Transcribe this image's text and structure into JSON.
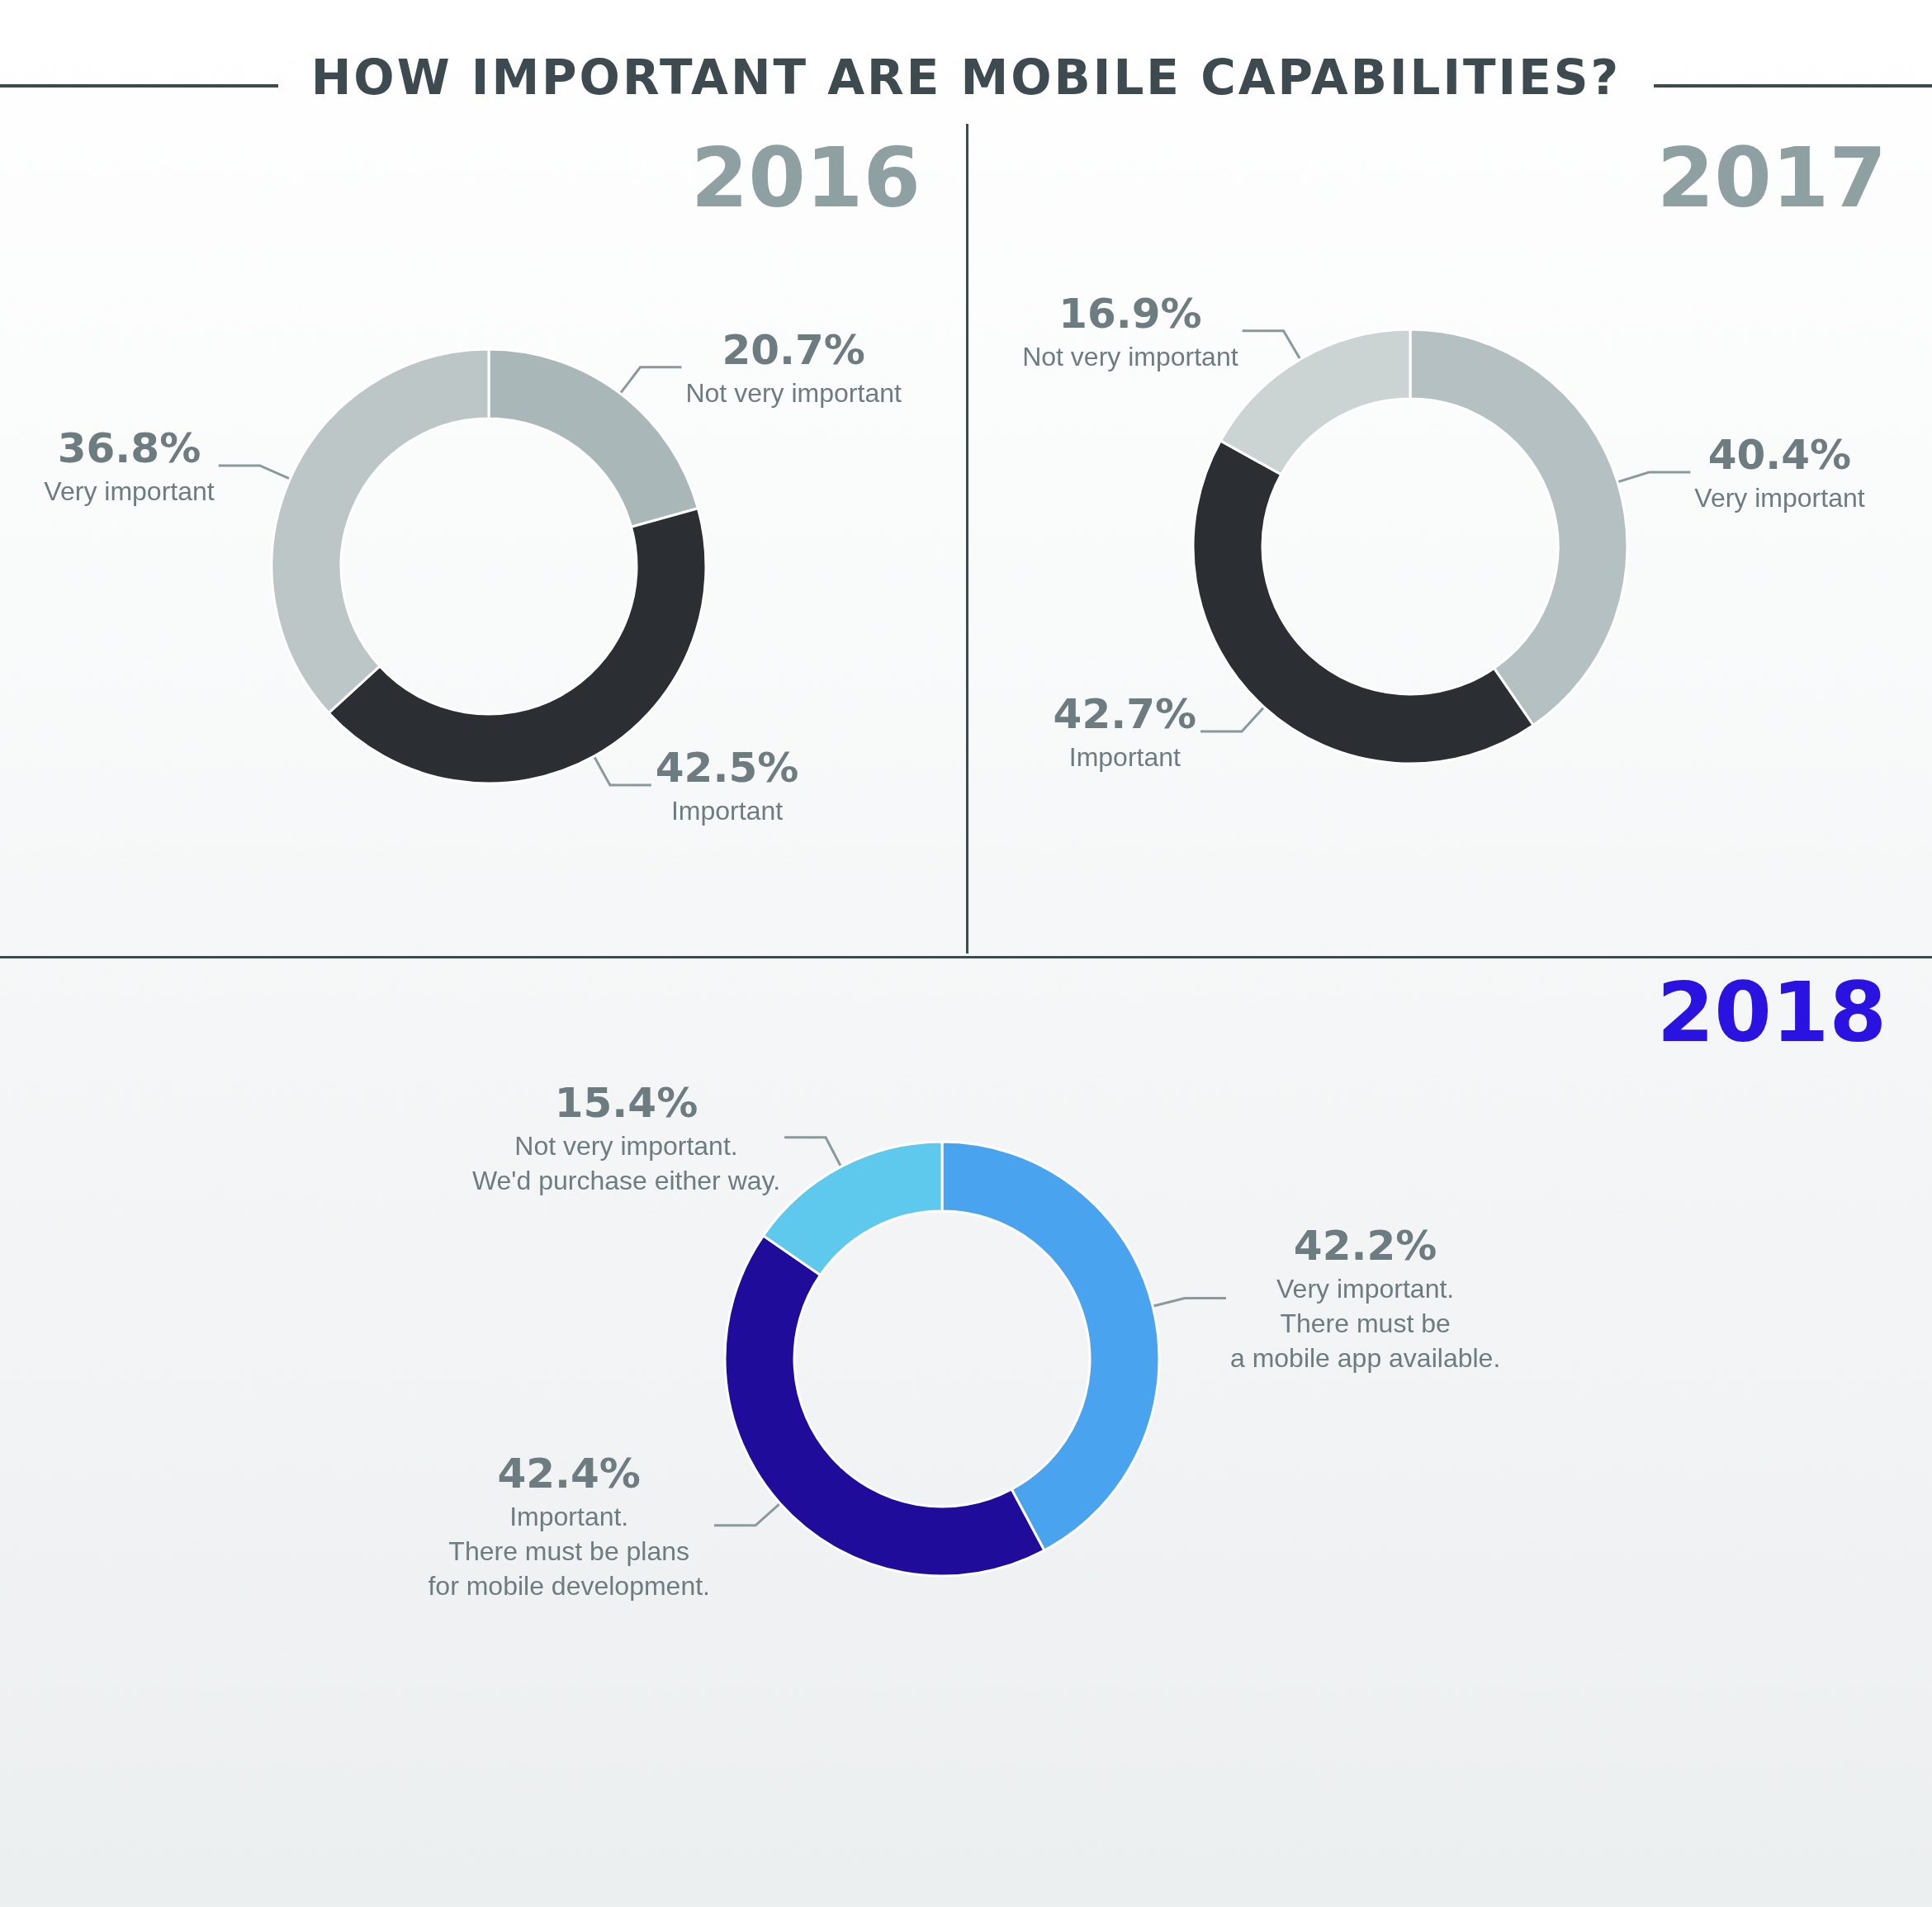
{
  "chart_data": [
    {
      "type": "donut",
      "title": "2016",
      "annotations": [
        "HOW IMPORTANT ARE MOBILE CAPABILITIES?"
      ],
      "categories": [
        "Not very important",
        "Important",
        "Very important"
      ],
      "values": [
        20.7,
        42.5,
        36.8
      ],
      "value_labels": [
        "20.7%",
        "42.5%",
        "36.8%"
      ],
      "colors": [
        "#aab7b8",
        "#2b2f33",
        "#bcc6c7"
      ]
    },
    {
      "type": "donut",
      "title": "2017",
      "categories": [
        "Very important",
        "Important",
        "Not very important"
      ],
      "values": [
        40.4,
        42.7,
        16.9
      ],
      "value_labels": [
        "40.4%",
        "42.7%",
        "16.9%"
      ],
      "colors": [
        "#b4c0c1",
        "#2b2f33",
        "#cbd3d3"
      ]
    },
    {
      "type": "donut",
      "title": "2018",
      "categories": [
        "Very important.\nThere must be\na mobile app available.",
        "Important.\nThere must be plans\nfor mobile development.",
        "Not very important.\nWe'd purchase either way."
      ],
      "values": [
        42.2,
        42.4,
        15.4
      ],
      "value_labels": [
        "42.2%",
        "42.4%",
        "15.4%"
      ],
      "colors": [
        "#4aa3ee",
        "#1f0c9a",
        "#5ec9ec"
      ]
    }
  ]
}
